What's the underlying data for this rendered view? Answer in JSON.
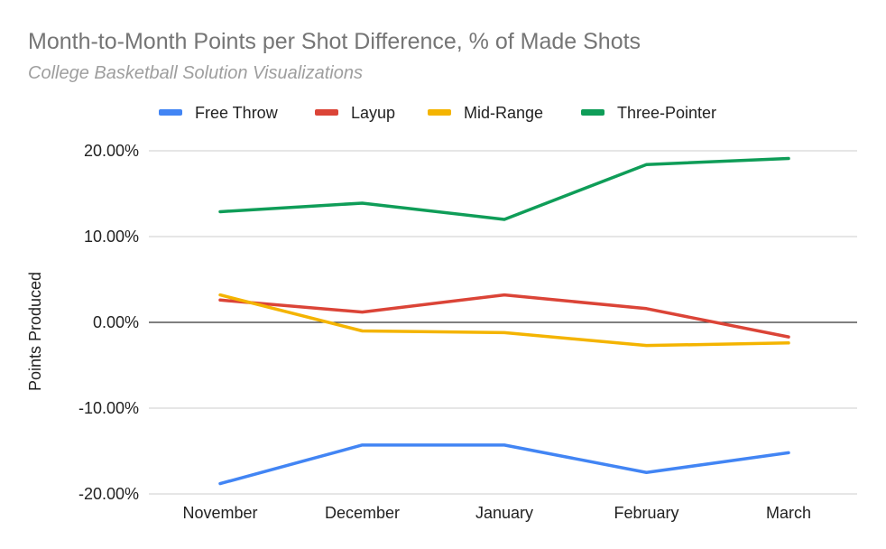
{
  "chart_data": {
    "type": "line",
    "title": "Month-to-Month Points per Shot Difference, % of Made Shots",
    "subtitle": "College Basketball Solution Visualizations",
    "xlabel": "",
    "ylabel": "Points Produced",
    "categories": [
      "November",
      "December",
      "January",
      "February",
      "March"
    ],
    "ylim": [
      -20,
      20
    ],
    "yticks": [
      20,
      10,
      0,
      -10,
      -20
    ],
    "ytick_labels": [
      "20.00%",
      "10.00%",
      "0.00%",
      "-10.00%",
      "-20.00%"
    ],
    "legend_position": "top",
    "grid": true,
    "series": [
      {
        "name": "Free Throw",
        "color": "#4285f4",
        "values": [
          -18.8,
          -14.3,
          -14.3,
          -17.5,
          -15.2
        ]
      },
      {
        "name": "Layup",
        "color": "#db4437",
        "values": [
          2.6,
          1.2,
          3.2,
          1.6,
          -1.7
        ]
      },
      {
        "name": "Mid-Range",
        "color": "#f4b400",
        "values": [
          3.2,
          -1.0,
          -1.2,
          -2.7,
          -2.4
        ]
      },
      {
        "name": "Three-Pointer",
        "color": "#0f9d58",
        "values": [
          12.9,
          13.9,
          12.0,
          18.4,
          19.1
        ]
      }
    ]
  }
}
